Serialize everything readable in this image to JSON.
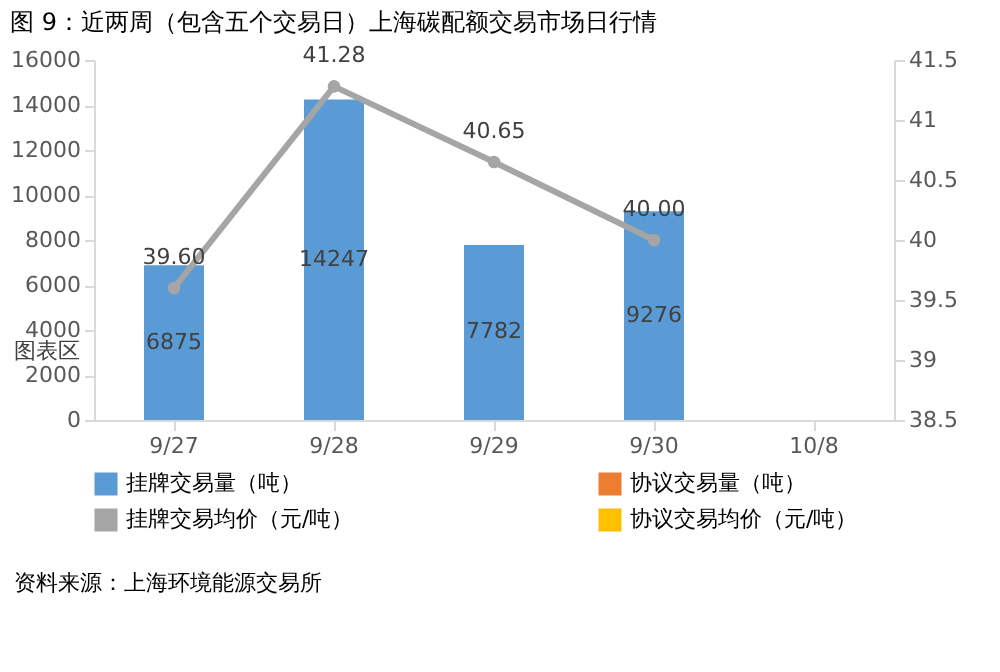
{
  "chart_data": {
    "type": "bar",
    "title": "图 9：近两周（包含五个交易日）上海碳配额交易市场日行情",
    "categories": [
      "9/27",
      "9/28",
      "9/29",
      "9/30",
      "10/8"
    ],
    "series": [
      {
        "name": "挂牌交易量（吨）",
        "color": "#5b9bd5",
        "values": [
          6875,
          14247,
          7782,
          9276,
          null
        ]
      },
      {
        "name": "协议交易量（吨）",
        "color": "#ed7d31",
        "values": [
          null,
          null,
          null,
          null,
          null
        ]
      },
      {
        "name": "挂牌交易均价（元/吨）",
        "type": "line",
        "axis": "y2",
        "color": "#a5a5a5",
        "values": [
          39.6,
          41.28,
          40.65,
          40.0,
          null
        ],
        "value_labels": [
          "39.60",
          "41.28",
          "40.65",
          "40.00",
          null
        ]
      },
      {
        "name": "协议交易均价（元/吨）",
        "type": "line",
        "axis": "y2",
        "color": "#ffc000",
        "values": [
          null,
          null,
          null,
          null,
          null
        ]
      }
    ],
    "ylim": [
      0,
      16000
    ],
    "yticks": [
      0,
      2000,
      4000,
      6000,
      8000,
      10000,
      12000,
      14000,
      16000
    ],
    "y2lim": [
      38.5,
      41.5
    ],
    "y2ticks": [
      38.5,
      39,
      39.5,
      40,
      40.5,
      41,
      41.5
    ],
    "data_labels": true,
    "grid": false,
    "legend": "bottom",
    "marker": "circle",
    "line_style": "solid",
    "annotations": [
      "图表区",
      "资料来源：上海环境能源交易所"
    ]
  }
}
